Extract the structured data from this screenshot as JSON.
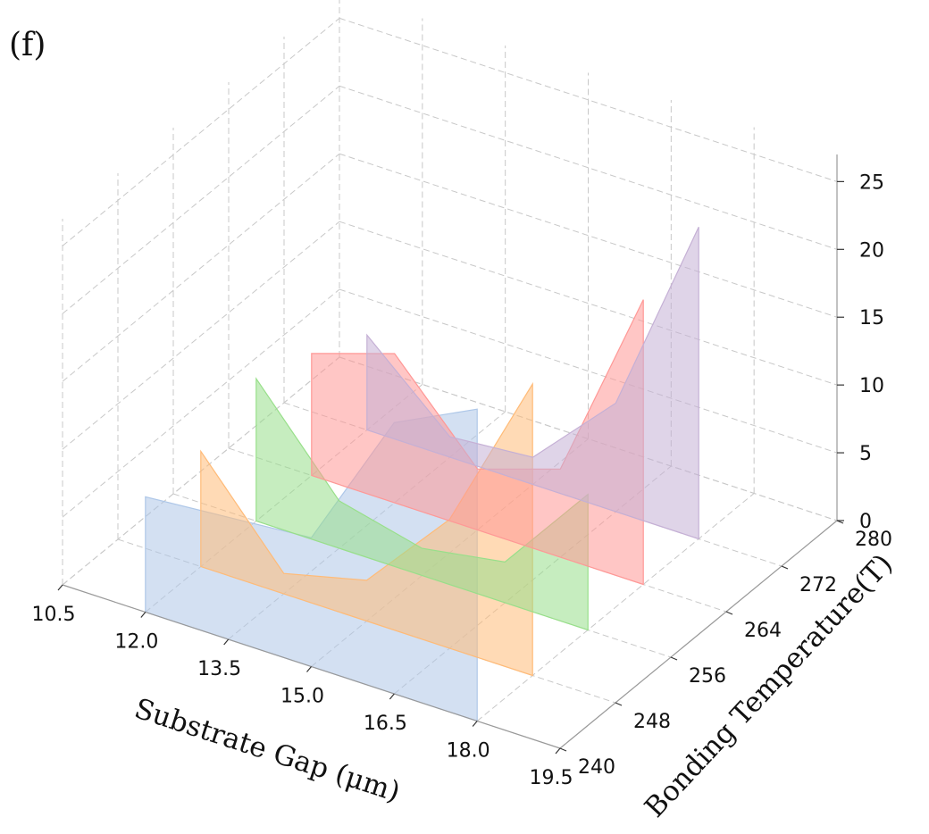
{
  "panel_label": "(f)",
  "chart_data": {
    "type": "area",
    "projection": "3d",
    "panel_label": "(f)",
    "xlabel": "Substrate Gap (μm)",
    "ylabel": "Bonding Temperature(T)",
    "zlabel": "",
    "x_ticks": [
      "10.5",
      "12.0",
      "13.5",
      "15.0",
      "16.5",
      "18.0",
      "19.5"
    ],
    "y_ticks": [
      "240",
      "248",
      "256",
      "264",
      "272",
      "280"
    ],
    "z_ticks": [
      "0",
      "5",
      "10",
      "15",
      "20",
      "25"
    ],
    "xlim": [
      10.5,
      19.5
    ],
    "ylim": [
      240,
      280
    ],
    "zlim": [
      0,
      27
    ],
    "grid": true,
    "x": [
      12.0,
      13.5,
      15.0,
      16.5,
      18.0
    ],
    "series": [
      {
        "temperature": 240,
        "color": "#aec7e8",
        "values": [
          8.5,
          9.0,
          9.5,
          20.0,
          23.0
        ]
      },
      {
        "temperature": 248,
        "color": "#ffbb78",
        "values": [
          8.5,
          1.5,
          3.0,
          9.5,
          21.5
        ]
      },
      {
        "temperature": 256,
        "color": "#98df8a",
        "values": [
          10.5,
          3.5,
          2.0,
          3.0,
          10.0
        ]
      },
      {
        "temperature": 264,
        "color": "#ff9896",
        "values": [
          9.0,
          11.0,
          4.5,
          6.5,
          21.0
        ]
      },
      {
        "temperature": 272,
        "color": "#c5b0d5",
        "values": [
          7.0,
          1.5,
          2.0,
          8.0,
          23.0
        ]
      }
    ]
  }
}
